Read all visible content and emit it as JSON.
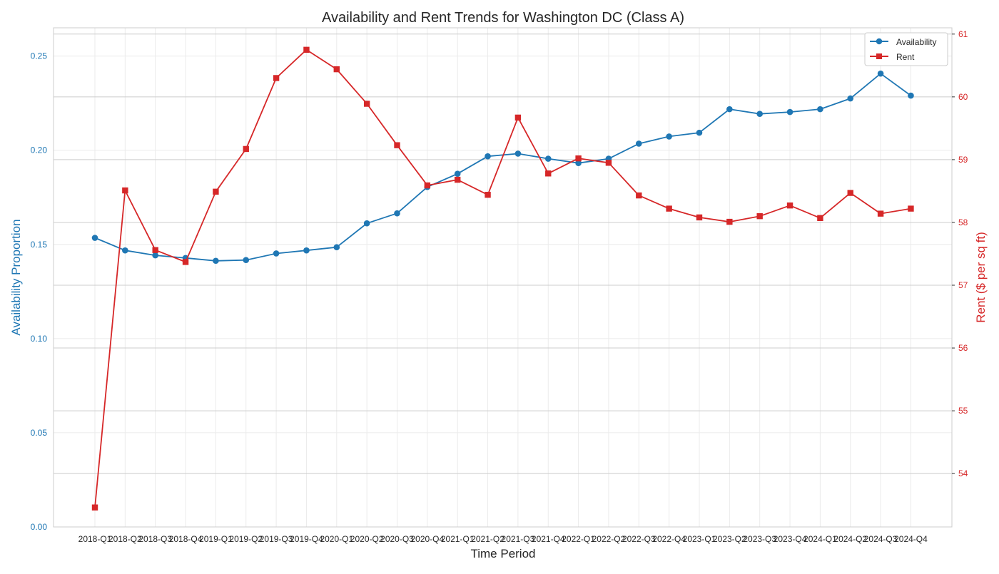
{
  "chart_data": {
    "type": "line",
    "title": "Availability and Rent Trends for Washington DC (Class A)",
    "xlabel": "Time Period",
    "ylabel_left": "Availability Proportion",
    "ylabel_right": "Rent ($ per sq ft)",
    "categories": [
      "2018-Q1",
      "2018-Q2",
      "2018-Q3",
      "2018-Q4",
      "2019-Q1",
      "2019-Q2",
      "2019-Q3",
      "2019-Q4",
      "2020-Q1",
      "2020-Q2",
      "2020-Q3",
      "2020-Q4",
      "2021-Q1",
      "2021-Q2",
      "2021-Q3",
      "2021-Q4",
      "2022-Q1",
      "2022-Q2",
      "2022-Q3",
      "2022-Q4",
      "2023-Q1",
      "2023-Q2",
      "2023-Q3",
      "2023-Q4",
      "2024-Q1",
      "2024-Q2",
      "2024-Q3",
      "2024-Q4"
    ],
    "ylim_left": [
      0,
      0.265
    ],
    "ylim_right": [
      53.15,
      61.1
    ],
    "yticks_left": [
      "0.00",
      "0.05",
      "0.10",
      "0.15",
      "0.20",
      "0.25"
    ],
    "yticks_right": [
      "54",
      "55",
      "56",
      "57",
      "58",
      "59",
      "60",
      "61"
    ],
    "series": [
      {
        "name": "Availability",
        "axis": "left",
        "color": "#1f77b4",
        "marker": "circle",
        "values": [
          0.1535,
          0.1468,
          0.1442,
          0.1428,
          0.1413,
          0.1417,
          0.1452,
          0.1468,
          0.1485,
          0.1612,
          0.1665,
          0.1805,
          0.1875,
          0.1968,
          0.1982,
          0.1955,
          0.1932,
          0.1955,
          0.2035,
          0.2073,
          0.2093,
          0.2218,
          0.2193,
          0.2203,
          0.2218,
          0.2275,
          0.2407,
          0.229
        ]
      },
      {
        "name": "Rent",
        "axis": "right",
        "color": "#d62728",
        "marker": "square",
        "values": [
          53.46,
          58.51,
          57.56,
          57.37,
          58.49,
          59.17,
          60.3,
          60.75,
          60.44,
          59.89,
          59.23,
          58.59,
          58.68,
          58.44,
          59.67,
          58.78,
          59.02,
          58.95,
          58.43,
          58.22,
          58.08,
          58.01,
          58.1,
          58.27,
          58.07,
          58.47,
          58.14,
          58.22
        ]
      }
    ],
    "legend_position": "top-right",
    "grid": true
  }
}
